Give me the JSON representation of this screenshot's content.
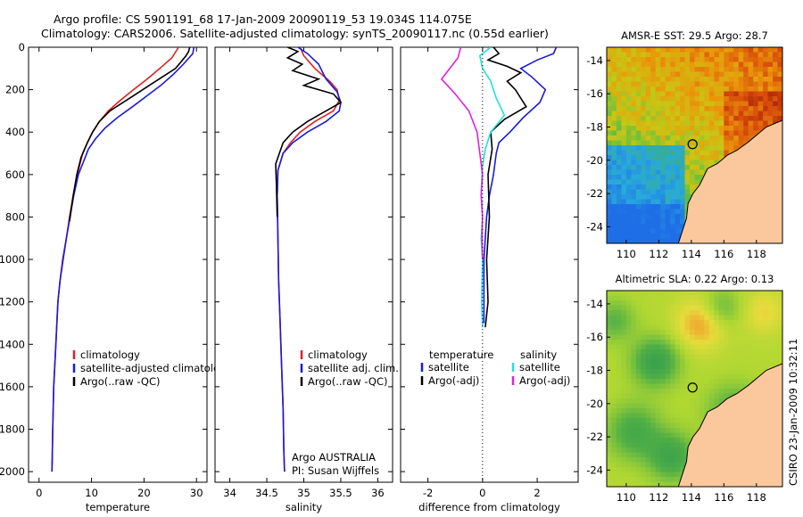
{
  "title_line1": "Argo profile: CS 5901191_68 17-Jan-2009 20090119_53 19.034S 114.075E",
  "title_line2": "Climatology: CARS2006. Satellite-adjusted climatology: synTS_20090117.nc (0.55d earlier)",
  "side_label": "CSIRO 23-Jan-2009 10:32:11",
  "colors": {
    "climatology": "#e02020",
    "satellite": "#1a1adc",
    "argo": "#000000",
    "cyan": "#20e0e0",
    "magenta": "#e020e0"
  },
  "chart_data": [
    {
      "type": "line",
      "xlabel": "temperature",
      "xlim": [
        -2,
        32
      ],
      "ylim": [
        2050,
        0
      ],
      "xticks": [
        "0",
        "10",
        "20",
        "30"
      ],
      "yticks": [
        "0",
        "200",
        "400",
        "600",
        "800",
        "1000",
        "1200",
        "1400",
        "1600",
        "1800",
        "2000"
      ],
      "legend": [
        "climatology",
        "satellite-adjusted climatology",
        "Argo(..raw -QC)"
      ],
      "series": [
        {
          "name": "climatology",
          "key": "climatology",
          "x": [
            26.6,
            25.3,
            23,
            20.6,
            18,
            15.5,
            13.2,
            11.5,
            10.2,
            9.2,
            8.3,
            7.3,
            6.5,
            5.8,
            5.2,
            4.5,
            4,
            3.6,
            3.2,
            2.8,
            2.6,
            2.5,
            2.45
          ],
          "y": [
            0,
            50,
            100,
            150,
            200,
            250,
            300,
            350,
            400,
            450,
            500,
            600,
            700,
            800,
            900,
            1000,
            1100,
            1200,
            1400,
            1600,
            1800,
            1950,
            2000
          ]
        },
        {
          "name": "satellite-adjusted climatology",
          "key": "satellite",
          "x": [
            29.5,
            29.3,
            27.5,
            25.5,
            23.2,
            20.5,
            17.8,
            15,
            12.6,
            10.8,
            9.4,
            7.5,
            6.6,
            5.9,
            5.2,
            4.6,
            4,
            3.6,
            3.2,
            2.8,
            2.6,
            2.5,
            2.45
          ],
          "y": [
            0,
            30,
            80,
            130,
            180,
            230,
            280,
            330,
            380,
            430,
            480,
            600,
            700,
            800,
            900,
            1000,
            1100,
            1200,
            1400,
            1600,
            1800,
            1950,
            2000
          ]
        },
        {
          "name": "Argo(..raw -QC)",
          "key": "argo",
          "x": [
            28.7,
            28.5,
            28,
            27,
            26,
            23.5,
            21,
            18.5,
            16,
            13.5,
            11.5,
            10.2,
            9.2,
            8,
            7.2,
            6.5,
            5.8
          ],
          "y": [
            0,
            20,
            40,
            70,
            100,
            140,
            180,
            220,
            260,
            300,
            350,
            400,
            450,
            520,
            600,
            700,
            820
          ]
        }
      ]
    },
    {
      "type": "line",
      "xlabel": "salinity",
      "xlim": [
        33.8,
        36.2
      ],
      "ylim": [
        2050,
        0
      ],
      "xticks": [
        "34",
        "34.5",
        "35",
        "35.5",
        "36"
      ],
      "legend": [
        "climatology",
        "satellite adj. clim.",
        "Argo(..raw -QC)"
      ],
      "annotation": [
        "Argo AUSTRALIA",
        "PI: Susan Wijffels"
      ],
      "series": [
        {
          "name": "climatology",
          "key": "climatology",
          "x": [
            34.95,
            35.0,
            35.15,
            35.35,
            35.45,
            35.48,
            35.4,
            35.15,
            34.95,
            34.82,
            34.72,
            34.65,
            34.64,
            34.65,
            34.66,
            34.68,
            34.7,
            34.72,
            34.73,
            34.74
          ],
          "y": [
            0,
            40,
            100,
            160,
            200,
            250,
            300,
            350,
            400,
            450,
            500,
            580,
            700,
            900,
            1100,
            1300,
            1500,
            1700,
            1900,
            2000
          ]
        },
        {
          "name": "satellite adj. clim.",
          "key": "satellite",
          "x": [
            34.92,
            35.05,
            35.2,
            35.3,
            35.45,
            35.5,
            35.48,
            35.3,
            35.05,
            34.85,
            34.72,
            34.65,
            34.64,
            34.65,
            34.66,
            34.68,
            34.7,
            34.72,
            34.73,
            34.74
          ],
          "y": [
            0,
            30,
            80,
            150,
            210,
            260,
            300,
            350,
            400,
            450,
            500,
            580,
            700,
            900,
            1100,
            1300,
            1500,
            1700,
            1900,
            2000
          ]
        },
        {
          "name": "Argo(..raw -QC)",
          "key": "argo",
          "x": [
            34.78,
            34.92,
            34.78,
            34.98,
            34.85,
            35.2,
            35.0,
            35.4,
            35.5,
            35.3,
            35.05,
            34.85,
            34.72,
            34.62,
            34.63,
            34.64
          ],
          "y": [
            0,
            20,
            50,
            80,
            110,
            150,
            180,
            220,
            260,
            300,
            350,
            400,
            450,
            550,
            650,
            800
          ]
        }
      ]
    },
    {
      "type": "line",
      "xlabel": "difference from climatology",
      "xlim": [
        -3,
        3.5
      ],
      "ylim": [
        2050,
        0
      ],
      "xticks": [
        "-2",
        "0",
        "2"
      ],
      "legend_left_title": "temperature",
      "legend_right_title": "salinity",
      "legend": [
        "satellite",
        "Argo(-adj)",
        "satellite",
        "Argo(-adj)"
      ],
      "series": [
        {
          "name": "temperature satellite",
          "key": "satellite",
          "x": [
            2.7,
            2.6,
            2.0,
            1.4,
            1.8,
            2.3,
            2.1,
            1.5,
            1.0,
            0.6,
            0.5,
            0.4,
            0.25,
            0.15,
            0.1,
            0.05,
            0.05
          ],
          "y": [
            0,
            30,
            60,
            100,
            140,
            200,
            260,
            330,
            400,
            450,
            500,
            600,
            700,
            800,
            900,
            1000,
            1300
          ]
        },
        {
          "name": "temperature Argo(-adj)",
          "key": "argo",
          "x": [
            0.4,
            0.6,
            0.2,
            0.9,
            1.4,
            0.9,
            1.2,
            1.6,
            0.8,
            0.3,
            0.35,
            0.2,
            0.25,
            0.15,
            0.2,
            0.1
          ],
          "y": [
            0,
            30,
            60,
            90,
            120,
            160,
            200,
            280,
            340,
            400,
            480,
            600,
            800,
            1000,
            1200,
            1320
          ]
        },
        {
          "name": "salinity satellite",
          "key": "cyan",
          "x": [
            0.3,
            -0.1,
            0.0,
            0.3,
            0.5,
            0.8,
            0.3,
            0.1,
            0.0,
            -0.05,
            0.0,
            -0.05,
            0.0,
            -0.03,
            0.0
          ],
          "y": [
            0,
            40,
            100,
            160,
            240,
            320,
            400,
            480,
            560,
            680,
            800,
            900,
            1000,
            1200,
            1320
          ]
        },
        {
          "name": "salinity Argo(-adj)",
          "key": "magenta",
          "x": [
            -0.8,
            -0.9,
            -1.5,
            -1.0,
            -0.5,
            -0.2,
            -0.1,
            -0.05,
            0.0,
            -0.05,
            0.0,
            -0.02,
            0.0
          ],
          "y": [
            0,
            50,
            150,
            220,
            300,
            400,
            500,
            550,
            600,
            700,
            800,
            900,
            1000
          ]
        }
      ]
    },
    {
      "type": "heatmap",
      "title": "AMSR-E SST: 29.5 Argo: 28.7",
      "xlim": [
        108.8,
        119.6
      ],
      "ylim": [
        -25,
        -13.2
      ],
      "xticks": [
        "110",
        "112",
        "114",
        "116",
        "118"
      ],
      "yticks": [
        "-14",
        "-16",
        "-18",
        "-20",
        "-22",
        "-24"
      ],
      "marker": {
        "lon": 114.075,
        "lat": -19.034
      }
    },
    {
      "type": "heatmap",
      "title": "Altimetric SLA: 0.22 Argo: 0.13",
      "xlim": [
        108.8,
        119.6
      ],
      "ylim": [
        -25,
        -13.2
      ],
      "xticks": [
        "110",
        "112",
        "114",
        "116",
        "118"
      ],
      "yticks": [
        "-14",
        "-16",
        "-18",
        "-20",
        "-22",
        "-24"
      ],
      "marker": {
        "lon": 114.075,
        "lat": -19.034
      }
    }
  ]
}
